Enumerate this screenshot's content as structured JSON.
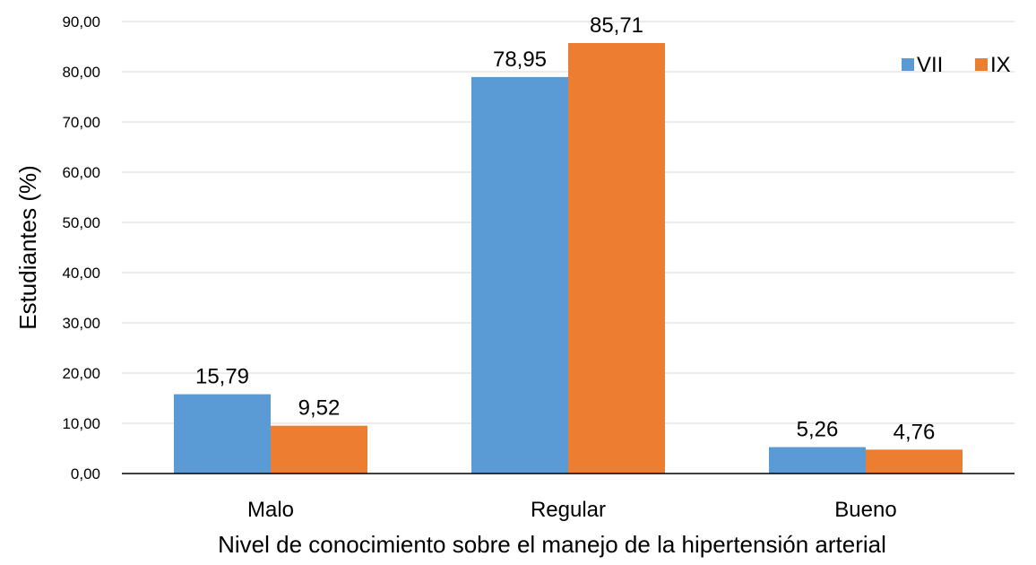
{
  "chart_data": {
    "type": "bar",
    "categories": [
      "Malo",
      "Regular",
      "Bueno"
    ],
    "series": [
      {
        "name": "VII",
        "values": [
          15.79,
          78.95,
          5.26
        ],
        "color": "#5B9BD5"
      },
      {
        "name": "IX",
        "values": [
          9.52,
          85.71,
          4.76
        ],
        "color": "#ED7D31"
      }
    ],
    "data_labels": [
      [
        "15,79",
        "78,95",
        "5,26"
      ],
      [
        "9,52",
        "85,71",
        "4,76"
      ]
    ],
    "y_ticks": [
      "0,00",
      "10,00",
      "20,00",
      "30,00",
      "40,00",
      "50,00",
      "60,00",
      "70,00",
      "80,00",
      "90,00"
    ],
    "ylim": [
      0,
      90
    ],
    "xlabel": "Nivel de conocimiento sobre el manejo de la hipertensión arterial",
    "ylabel": "Estudiantes  (%)",
    "grid": true,
    "legend_position": "top-right",
    "gridline_color": "#D9D9D9",
    "axis_color": "#000000"
  }
}
